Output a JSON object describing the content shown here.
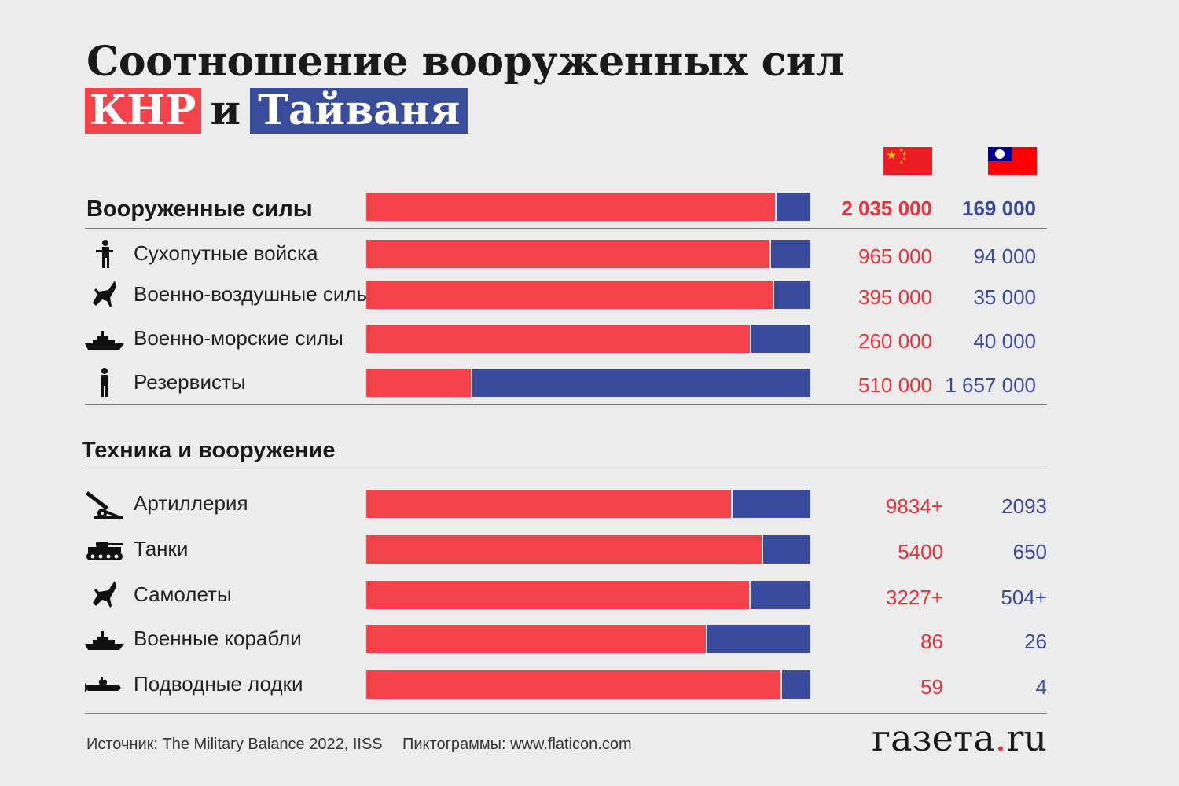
{
  "title_line1": "Соотношение вооруженных сил",
  "title_prc": "КНР",
  "title_conj": "и",
  "title_taiwan": "Тайваня",
  "colors": {
    "prc": "#f4424a",
    "taiwan": "#3a4a9c"
  },
  "forces": {
    "heading": "Вооруженные силы",
    "total": {
      "prc": "2 035 000",
      "taiwan": "169 000"
    },
    "rows": [
      {
        "label": "Сухопутные войска",
        "icon": "soldier-icon",
        "prc": "965 000",
        "taiwan": "94 000"
      },
      {
        "label": "Военно-воздушные силы",
        "icon": "jet-icon",
        "prc": "395 000",
        "taiwan": "35 000"
      },
      {
        "label": "Военно-морские силы",
        "icon": "warship-icon",
        "prc": "260 000",
        "taiwan": "40 000"
      },
      {
        "label": "Резервисты",
        "icon": "person-icon",
        "prc": "510 000",
        "taiwan": "1 657 000"
      }
    ]
  },
  "equipment": {
    "heading": "Техника и вооружение",
    "rows": [
      {
        "label": "Артиллерия",
        "icon": "artillery-icon",
        "prc": "9834+",
        "taiwan": "2093"
      },
      {
        "label": "Танки",
        "icon": "tank-icon",
        "prc": "5400",
        "taiwan": "650"
      },
      {
        "label": "Самолеты",
        "icon": "jet-icon",
        "prc": "3227+",
        "taiwan": "504+"
      },
      {
        "label": "Военные корабли",
        "icon": "warship-icon",
        "prc": "86",
        "taiwan": "26"
      },
      {
        "label": "Подводные лодки",
        "icon": "submarine-icon",
        "prc": "59",
        "taiwan": "4"
      }
    ]
  },
  "footer": {
    "source": "Источник: The Military Balance 2022, IISS",
    "icons_credit": "Пиктограммы: www.flaticon.com",
    "brand_a": "газета",
    "brand_dot": ".",
    "brand_b": "ru"
  },
  "chart_data": {
    "type": "bar",
    "orientation": "horizontal-stacked-100",
    "series_names": [
      "КНР",
      "Тайвань"
    ],
    "categories": [
      "Вооруженные силы",
      "Сухопутные войска",
      "Военно-воздушные силы",
      "Военно-морские силы",
      "Резервисты",
      "Артиллерия",
      "Танки",
      "Самолеты",
      "Военные корабли",
      "Подводные лодки"
    ],
    "series": [
      {
        "name": "КНР",
        "values": [
          2035000,
          965000,
          395000,
          260000,
          510000,
          9834,
          5400,
          3227,
          86,
          59
        ]
      },
      {
        "name": "Тайвань",
        "values": [
          169000,
          94000,
          35000,
          40000,
          1657000,
          2093,
          650,
          504,
          26,
          4
        ]
      }
    ]
  }
}
